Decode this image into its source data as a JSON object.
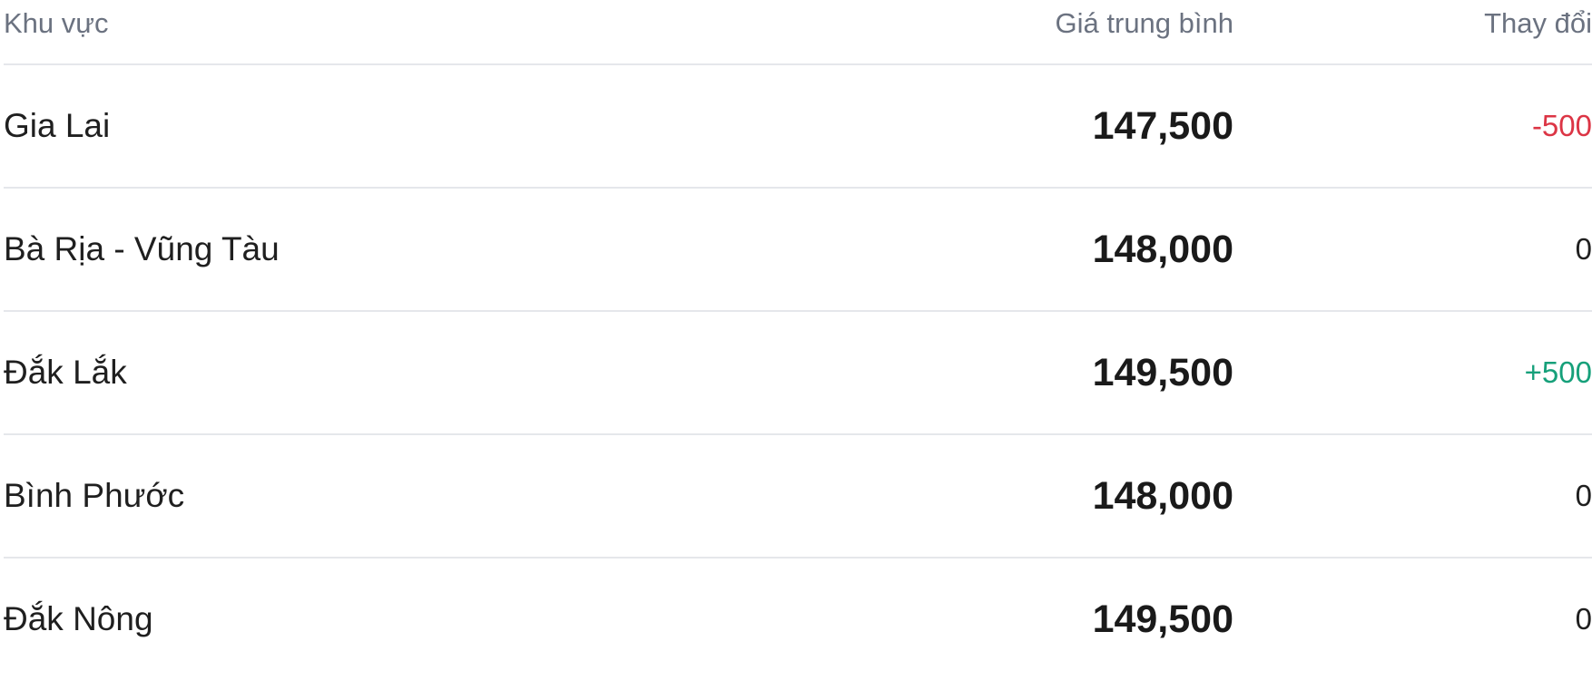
{
  "table": {
    "headers": [
      "Khu vực",
      "Giá trung bình",
      "Thay đổi"
    ],
    "rows": [
      {
        "region": "Gia Lai",
        "price": "147,500",
        "change": "-500",
        "trend": "down"
      },
      {
        "region": "Bà Rịa - Vũng Tàu",
        "price": "148,000",
        "change": "0",
        "trend": "flat"
      },
      {
        "region": "Đắk Lắk",
        "price": "149,500",
        "change": "+500",
        "trend": "up"
      },
      {
        "region": "Bình Phước",
        "price": "148,000",
        "change": "0",
        "trend": "flat"
      },
      {
        "region": "Đắk Nông",
        "price": "149,500",
        "change": "0",
        "trend": "flat"
      }
    ]
  },
  "colors": {
    "down": "#dc3545",
    "up": "#16a07a",
    "flat": "#1f1f1f"
  }
}
